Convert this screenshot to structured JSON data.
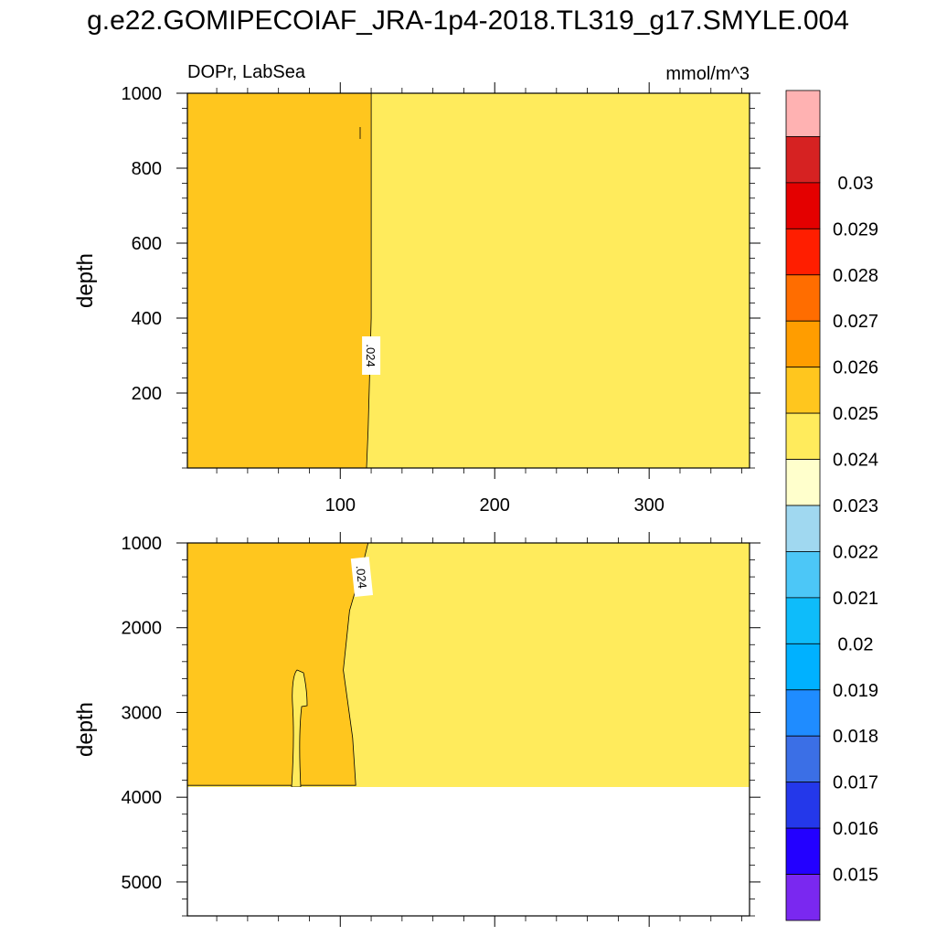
{
  "title": "g.e22.GOMIPECOIAF_JRA-1p4-2018.TL319_g17.SMYLE.004",
  "left_string": "DOPr, LabSea",
  "right_string": "mmol/m^3",
  "chart_data": {
    "type": "heatmap",
    "variable": "DOPr",
    "region": "LabSea",
    "units": "mmol/m^3",
    "x_range": [
      1,
      365
    ],
    "x_ticks": [
      100,
      200,
      300
    ],
    "panels": [
      {
        "name": "upper",
        "ylabel": "depth",
        "ylim": [
          1000,
          0
        ],
        "y_ticks": [
          200,
          400,
          600,
          800,
          1000
        ],
        "contour_labels": [
          ".024"
        ],
        "regions": [
          {
            "interval": "0.024-0.025",
            "description": "x from 1 to ~120 at all depths 0-1000"
          },
          {
            "interval": "0.023-0.024",
            "description": "x from ~120 to 365"
          }
        ],
        "contour_024_x_at_depth": [
          [
            0,
            117
          ],
          [
            100,
            118
          ],
          [
            400,
            120
          ],
          [
            1000,
            120
          ]
        ]
      },
      {
        "name": "lower",
        "ylabel": "depth",
        "ylim": [
          1000,
          5400
        ],
        "y_ticks": [
          1000,
          2000,
          3000,
          4000,
          5000
        ],
        "data_bottom_depth": 3860,
        "contour_labels": [
          ".024"
        ],
        "regions": [
          {
            "interval": "0.024-0.025",
            "description": "x from 1 to ~110 between 1000 and 3860 depth"
          },
          {
            "interval": "0.023-0.024",
            "description": "x from ~110 to 365; plus thin tongue near x 68-80, depth 2450-3860"
          },
          {
            "interval": "missing",
            "description": "below 3860 depth, no data"
          }
        ],
        "contour_024_x_at_depth": [
          [
            1000,
            118
          ],
          [
            1300,
            114
          ],
          [
            1800,
            106
          ],
          [
            2500,
            102
          ],
          [
            2900,
            105
          ],
          [
            3300,
            108
          ],
          [
            3860,
            110
          ]
        ]
      }
    ],
    "colorbar": {
      "labels": [
        "0.015",
        "0.016",
        "0.017",
        "0.018",
        "0.019",
        "0.02",
        "0.021",
        "0.022",
        "0.023",
        "0.024",
        "0.025",
        "0.026",
        "0.027",
        "0.028",
        "0.029",
        "0.03"
      ],
      "colors": [
        "#7a28f0",
        "#2300ff",
        "#2438ea",
        "#3b6fe6",
        "#1f8cff",
        "#00b1ff",
        "#0ebcfa",
        "#4cc7f7",
        "#a0d8f0",
        "#ffffcc",
        "#ffeb5c",
        "#ffc61e",
        "#ff9d00",
        "#ff6d00",
        "#ff1e00",
        "#e40000",
        "#d62222",
        "#ffb2b2"
      ]
    }
  }
}
